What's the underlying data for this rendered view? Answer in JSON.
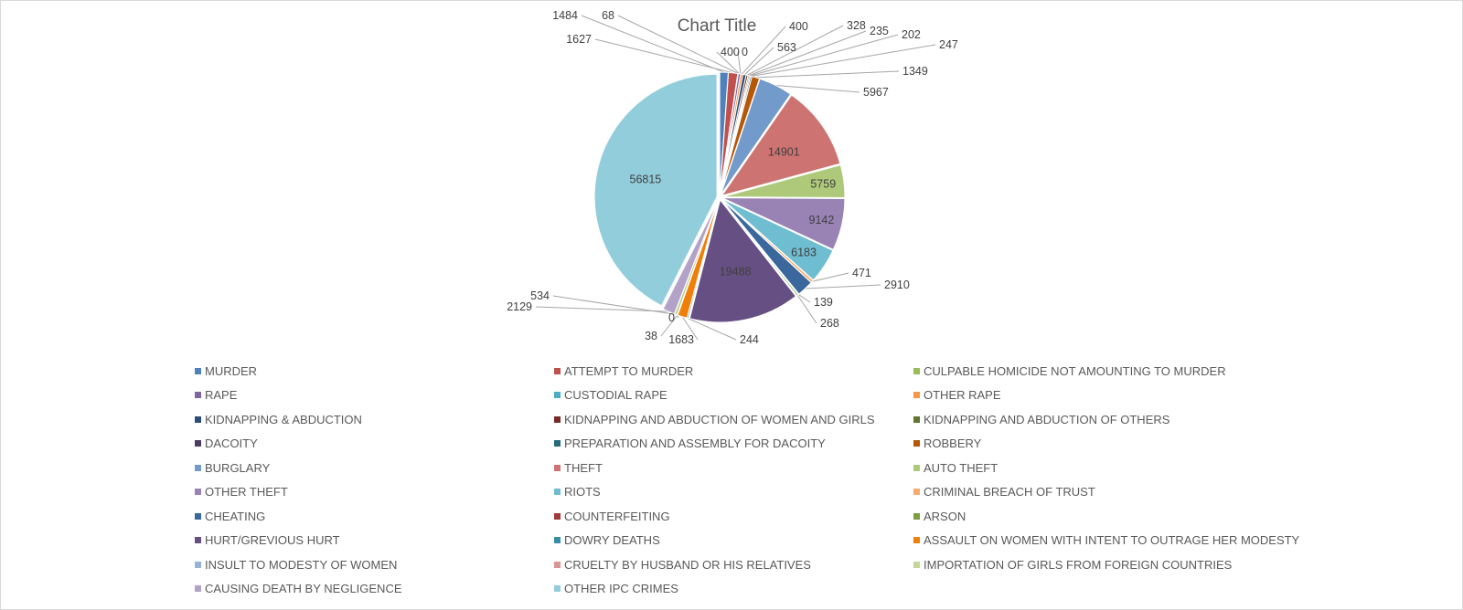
{
  "chart_data": {
    "type": "pie",
    "title": "Chart Title",
    "legend_position": "bottom",
    "categories": [
      "MURDER",
      "ATTEMPT TO MURDER",
      "CULPABLE HOMICIDE NOT AMOUNTING TO MURDER",
      "RAPE",
      "CUSTODIAL RAPE",
      "OTHER RAPE",
      "KIDNAPPING & ABDUCTION",
      "KIDNAPPING AND ABDUCTION OF WOMEN AND GIRLS",
      "KIDNAPPING AND ABDUCTION OF OTHERS",
      "DACOITY",
      "PREPARATION AND ASSEMBLY FOR DACOITY",
      "ROBBERY",
      "BURGLARY",
      "THEFT",
      "AUTO THEFT",
      "OTHER THEFT",
      "RIOTS",
      "CRIMINAL BREACH OF TRUST",
      "CHEATING",
      "COUNTERFEITING",
      "ARSON",
      "HURT/GREVIOUS HURT",
      "DOWRY DEATHS",
      "ASSAULT ON WOMEN WITH INTENT TO OUTRAGE HER MODESTY",
      "INSULT TO MODESTY OF WOMEN",
      "CRUELTY BY HUSBAND OR HIS RELATIVES",
      "IMPORTATION OF GIRLS FROM FOREIGN COUNTRIES",
      "CAUSING DEATH BY NEGLIGENCE",
      "OTHER IPC CRIMES"
    ],
    "values": [
      1484,
      1627,
      68,
      400,
      0,
      400,
      563,
      328,
      235,
      202,
      247,
      1349,
      5967,
      14901,
      5759,
      9142,
      6183,
      471,
      2910,
      139,
      268,
      19488,
      244,
      1683,
      38,
      0,
      534,
      2129,
      56815
    ],
    "colors": [
      "#4f81bd",
      "#c0504d",
      "#9bbb59",
      "#8064a2",
      "#4bacc6",
      "#f79646",
      "#2c4d75",
      "#772c2a",
      "#5f7530",
      "#4d3b62",
      "#276a7c",
      "#b65708",
      "#729aca",
      "#cd7371",
      "#afc97a",
      "#9983b5",
      "#6fbdd1",
      "#f9ab6b",
      "#3a679c",
      "#9f3b38",
      "#7e9c40",
      "#664f83",
      "#358ea6",
      "#f07f09",
      "#95b3d7",
      "#d99694",
      "#c3d69b",
      "#b2a2c7",
      "#92cddc"
    ]
  }
}
